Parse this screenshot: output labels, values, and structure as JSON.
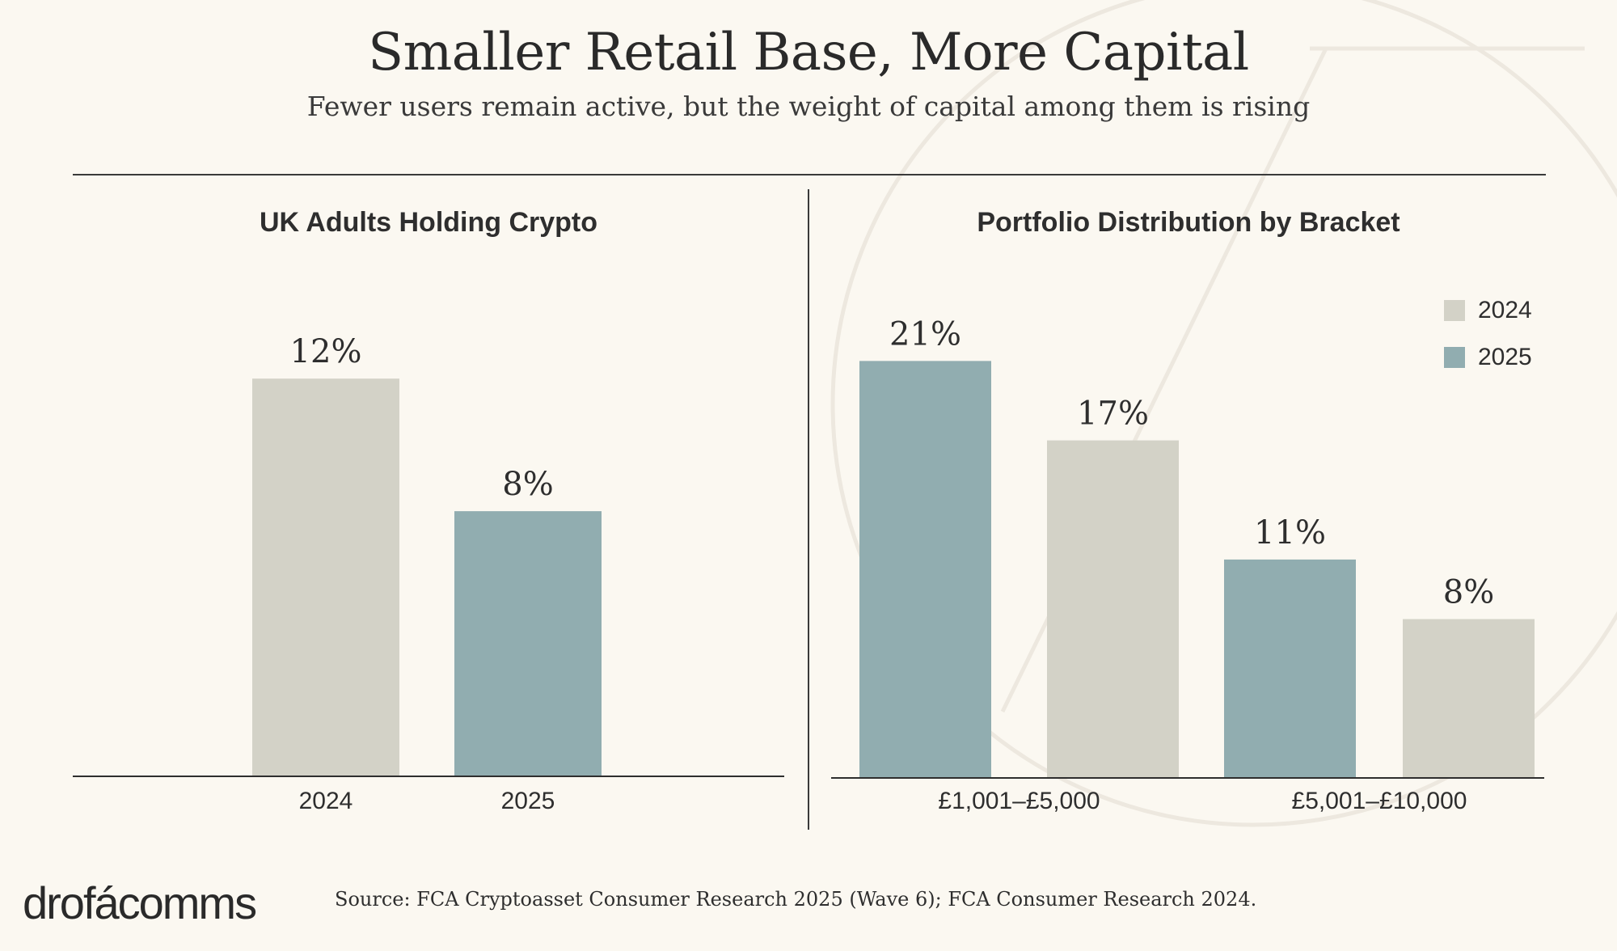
{
  "title": "Smaller Retail Base, More Capital",
  "subtitle": "Fewer users remain active, but the weight of capital among them is rising",
  "colors": {
    "y2024": "#d3d2c7",
    "y2025": "#91adb0",
    "background": "#fbf8f1",
    "text": "#2e2e2e"
  },
  "chart_data": [
    {
      "type": "bar",
      "title": "UK Adults Holding Crypto",
      "categories": [
        "2024",
        "2025"
      ],
      "values": [
        12,
        8
      ],
      "value_labels": [
        "12%",
        "8%"
      ],
      "ylim": [
        0,
        12.2
      ],
      "grid": false
    },
    {
      "type": "bar",
      "title": "Portfolio Distribution by Bracket",
      "bars": [
        {
          "value": 21,
          "label": "21%",
          "series": "2025"
        },
        {
          "value": 17,
          "label": "17%",
          "series": "2024"
        },
        {
          "value": 11,
          "label": "11%",
          "series": "2025"
        },
        {
          "value": 8,
          "label": "8%",
          "series": "2024"
        }
      ],
      "group_labels": [
        "£1,001–£5,000",
        "£5,001–£10,000"
      ],
      "legend": {
        "placement": "top-right",
        "entries": [
          "2024",
          "2025"
        ]
      },
      "ylim": [
        0,
        21.3
      ],
      "grid": false
    }
  ],
  "footer": {
    "logo": "drofácomms",
    "source": "Source: FCA Cryptoasset Consumer Research 2025 (Wave 6); FCA Consumer Research 2024."
  }
}
